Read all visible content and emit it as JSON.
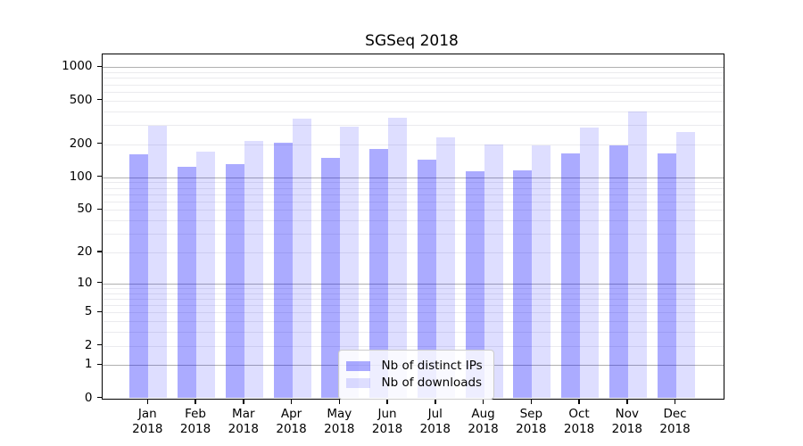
{
  "background": "#ffffff",
  "chart_data": {
    "type": "bar",
    "title": "SGSeq 2018",
    "xlabel": "",
    "ylabel": "",
    "categories": [
      "Jan",
      "Feb",
      "Mar",
      "Apr",
      "May",
      "Jun",
      "Jul",
      "Aug",
      "Sep",
      "Oct",
      "Nov",
      "Dec"
    ],
    "category_year": "2018",
    "series": [
      {
        "name": "Nb of distinct IPs",
        "color": "rgba(0,0,255,0.33)",
        "values": [
          163,
          125,
          131,
          205,
          150,
          182,
          144,
          113,
          115,
          165,
          195,
          165
        ]
      },
      {
        "name": "Nb of downloads",
        "color": "rgba(0,0,255,0.13)",
        "values": [
          295,
          171,
          215,
          345,
          291,
          350,
          233,
          200,
          195,
          282,
          395,
          258
        ]
      }
    ],
    "y_axis": {
      "scale": "log1p",
      "tick_labels": [
        0,
        1,
        2,
        5,
        10,
        20,
        50,
        100,
        200,
        500,
        1000
      ],
      "major_gridlines": [
        1,
        10,
        100,
        1000
      ],
      "minor_gridlines": [
        2,
        3,
        4,
        5,
        6,
        7,
        8,
        9,
        20,
        30,
        40,
        50,
        60,
        70,
        80,
        90,
        200,
        300,
        400,
        500,
        600,
        700,
        800,
        900
      ],
      "ylim": [
        0,
        1300
      ]
    },
    "grid": true,
    "legend": {
      "position": "lower center",
      "entries": [
        "Nb of distinct IPs",
        "Nb of downloads"
      ]
    },
    "colors": {
      "major_grid": "#b0b0b0",
      "minor_grid": "#ebebee",
      "spine": "#000000",
      "bar_ips_rendered": "#ababff",
      "bar_downloads_rendered": "#dedeff"
    }
  }
}
